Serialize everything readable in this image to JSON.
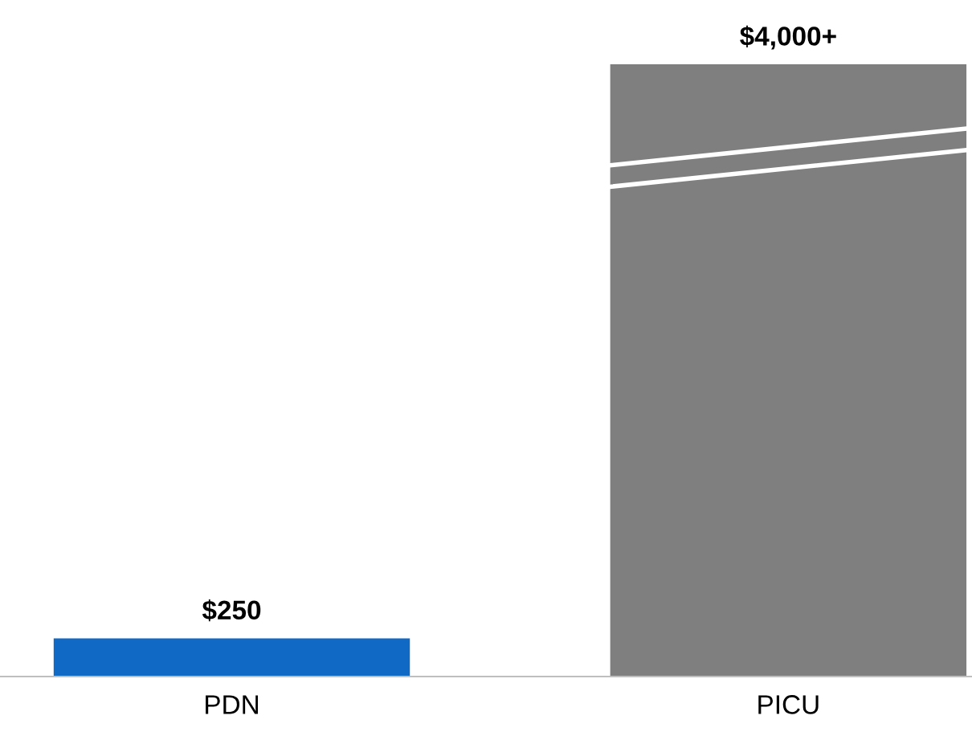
{
  "chart_data": {
    "type": "bar",
    "categories": [
      "PDN",
      "PICU"
    ],
    "values": [
      250,
      4000
    ],
    "colors": [
      "#1169c6",
      "#7f7f7f"
    ],
    "value_labels": [
      "$250",
      "$4,000+"
    ]
  }
}
